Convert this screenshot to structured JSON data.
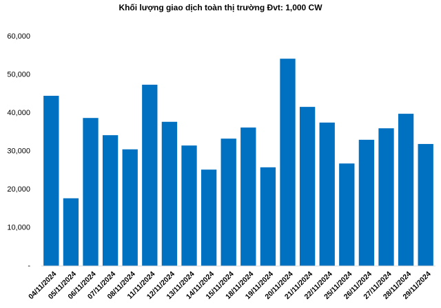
{
  "chart_data": {
    "type": "bar",
    "title": "Khối lượng giao dịch toàn thị trường Đvt: 1,000 CW",
    "categories": [
      "04/11/2024",
      "05/11/2024",
      "06/11/2024",
      "07/11/2024",
      "08/11/2024",
      "11/11/2024",
      "12/11/2024",
      "13/11/2024",
      "14/11/2024",
      "15/11/2024",
      "18/11/2024",
      "19/11/2024",
      "20/11/2024",
      "21/11/2024",
      "22/11/2024",
      "25/11/2024",
      "26/11/2024",
      "27/11/2024",
      "28/11/2024",
      "29/11/2024"
    ],
    "values": [
      44500,
      17700,
      38700,
      34200,
      30500,
      47400,
      37700,
      31500,
      25200,
      33300,
      36200,
      25800,
      54200,
      41600,
      37500,
      26800,
      33000,
      36000,
      39800,
      31900
    ],
    "color": "#0070c0",
    "ylim": [
      0,
      60000
    ],
    "yticks": [
      {
        "value": 0,
        "label": "-"
      },
      {
        "value": 10000,
        "label": "10,000"
      },
      {
        "value": 20000,
        "label": "20,000"
      },
      {
        "value": 30000,
        "label": "30,000"
      },
      {
        "value": 40000,
        "label": "40,000"
      },
      {
        "value": 50000,
        "label": "50,000"
      },
      {
        "value": 60000,
        "label": "60,000"
      }
    ],
    "grid": false
  }
}
